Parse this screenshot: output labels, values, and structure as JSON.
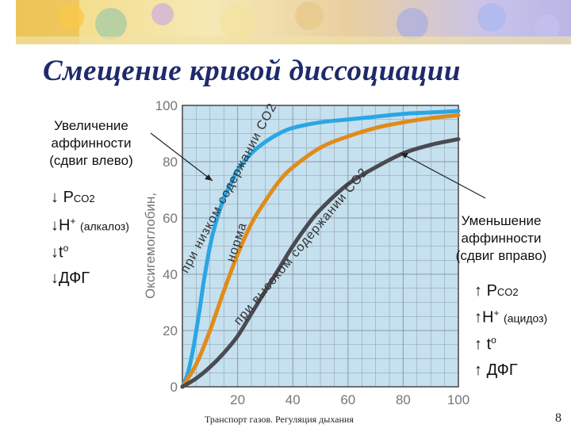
{
  "slide": {
    "title": "Смещение кривой диссоциации",
    "footer": "Транспорт газов. Регуляция дыхания",
    "page_number": "8"
  },
  "left_note": {
    "lines": [
      "Увеличение",
      "аффинности",
      "(сдвиг влево)"
    ],
    "factors": [
      {
        "arrow": "↓",
        "main": "P",
        "sub": "CO2",
        "sup": "",
        "small": ""
      },
      {
        "arrow": "↓",
        "main": "H",
        "sub": "",
        "sup": "+",
        "small": "(алкалоз)"
      },
      {
        "arrow": "↓",
        "main": "t",
        "sub": "",
        "sup": "o",
        "small": ""
      },
      {
        "arrow": "↓",
        "main": "ДФГ",
        "sub": "",
        "sup": "",
        "small": ""
      }
    ]
  },
  "right_note": {
    "lines": [
      "Уменьшение",
      "аффинности",
      "(сдвиг вправо)"
    ],
    "factors": [
      {
        "arrow": "↑",
        "main": "P",
        "sub": "CO2",
        "sup": "",
        "small": ""
      },
      {
        "arrow": "↑",
        "main": "H",
        "sub": "",
        "sup": "+",
        "small": "(ацидоз)"
      },
      {
        "arrow": "↑",
        "main": "t",
        "sub": "",
        "sup": "o",
        "small": ""
      },
      {
        "arrow": "↑",
        "main": "ДФГ",
        "sub": "",
        "sup": "",
        "small": ""
      }
    ]
  },
  "chart_data": {
    "type": "line",
    "title": "",
    "xlabel": "",
    "ylabel": "Оксигемоглобин,",
    "xlim": [
      0,
      100
    ],
    "ylim": [
      0,
      100
    ],
    "x_ticks": [
      20,
      40,
      60,
      80,
      100
    ],
    "y_ticks": [
      0,
      20,
      40,
      60,
      80,
      100
    ],
    "grid": true,
    "series": [
      {
        "name": "при низком содержании CO2",
        "color": "#2aa6e3",
        "x": [
          0,
          2,
          4,
          6,
          8,
          10,
          12,
          15,
          18,
          20,
          25,
          30,
          35,
          40,
          50,
          60,
          70,
          80,
          90,
          100
        ],
        "y": [
          0,
          5,
          14,
          26,
          39,
          50,
          58,
          67,
          73,
          77,
          83,
          87,
          90,
          92,
          94,
          95,
          96,
          97,
          97.5,
          98
        ]
      },
      {
        "name": "норма",
        "color": "#e08b1a",
        "x": [
          0,
          5,
          10,
          15,
          20,
          25,
          30,
          35,
          40,
          50,
          60,
          70,
          80,
          90,
          100
        ],
        "y": [
          0,
          8,
          20,
          34,
          47,
          58,
          66,
          73,
          78,
          85,
          89,
          92,
          94,
          95.5,
          96.5
        ]
      },
      {
        "name": "при высоком содержании CO2",
        "color": "#4a4a52",
        "x": [
          0,
          5,
          10,
          15,
          20,
          25,
          30,
          35,
          40,
          45,
          50,
          60,
          70,
          80,
          90,
          100
        ],
        "y": [
          0,
          3,
          7,
          12,
          18,
          26,
          34,
          42,
          50,
          57,
          63,
          72,
          78,
          83,
          86,
          88
        ]
      }
    ],
    "annotations": [
      "при низком содержании CO2",
      "норма",
      "при высоком содержании CO2"
    ]
  }
}
